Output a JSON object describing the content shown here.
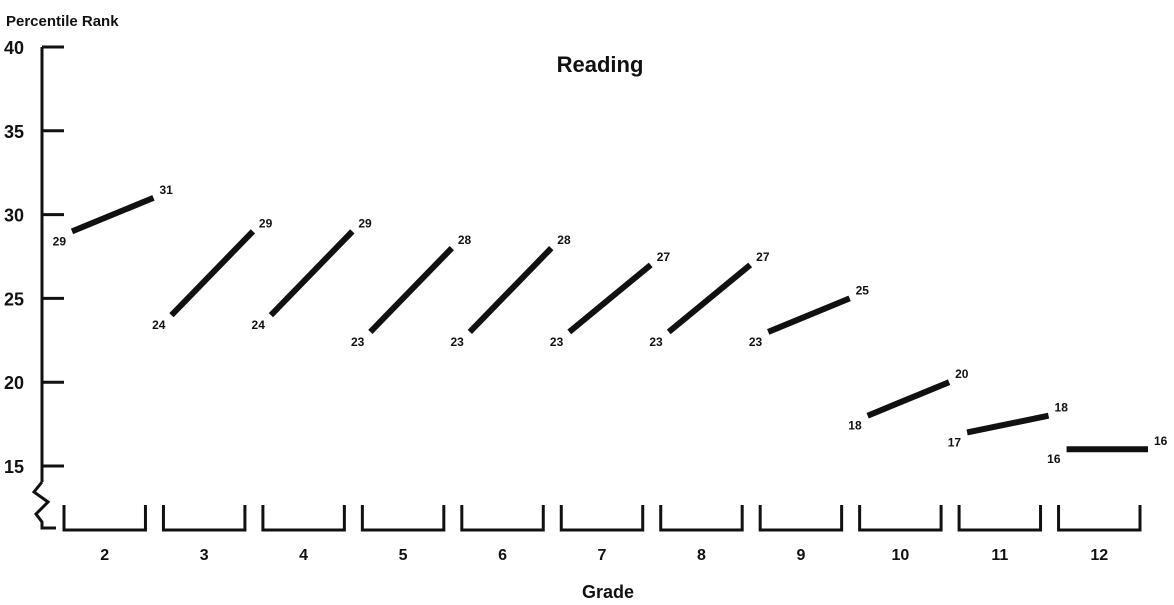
{
  "chart_data": {
    "type": "line",
    "title": "Reading",
    "ylabel": "Percentile Rank",
    "xlabel": "Grade",
    "ylim": [
      13,
      40
    ],
    "yticks": [
      15,
      20,
      25,
      30,
      35,
      40
    ],
    "grid": false,
    "legend": "none",
    "categories": [
      "2",
      "3",
      "4",
      "5",
      "6",
      "7",
      "8",
      "9",
      "10",
      "11",
      "12"
    ],
    "segments": [
      {
        "grade": "2",
        "start": 29,
        "end": 31
      },
      {
        "grade": "3",
        "start": 24,
        "end": 29
      },
      {
        "grade": "4",
        "start": 24,
        "end": 29
      },
      {
        "grade": "5",
        "start": 23,
        "end": 28
      },
      {
        "grade": "6",
        "start": 23,
        "end": 28
      },
      {
        "grade": "7",
        "start": 23,
        "end": 27
      },
      {
        "grade": "8",
        "start": 23,
        "end": 27
      },
      {
        "grade": "9",
        "start": 23,
        "end": 25
      },
      {
        "grade": "10",
        "start": 18,
        "end": 20
      },
      {
        "grade": "11",
        "start": 17,
        "end": 18
      },
      {
        "grade": "12",
        "start": 16,
        "end": 16
      }
    ]
  }
}
